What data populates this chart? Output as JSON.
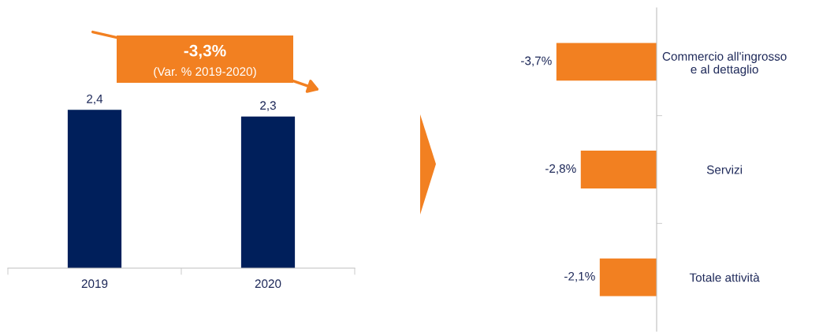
{
  "chart_data": [
    {
      "type": "bar",
      "categories": [
        "2019",
        "2020"
      ],
      "color": "#001f5b",
      "values": [
        2.4,
        2.3
      ],
      "value_labels": [
        "2,4",
        "2,3"
      ],
      "tick_labels": "x",
      "annotations": [
        "-3,3%",
        "(Var. % 2019-2020)"
      ]
    },
    {
      "type": "bar",
      "orientation": "horizontal",
      "categories": [
        "Commercio all'ingrosso\ne al dettaglio",
        "Servizi",
        "Totale attività"
      ],
      "color": "#f28021",
      "values": [
        -3.7,
        -2.8,
        -2.1
      ],
      "value_labels": [
        "-3,7%",
        "-2,8%",
        "-2,1%"
      ],
      "tick_labels": "y"
    }
  ]
}
